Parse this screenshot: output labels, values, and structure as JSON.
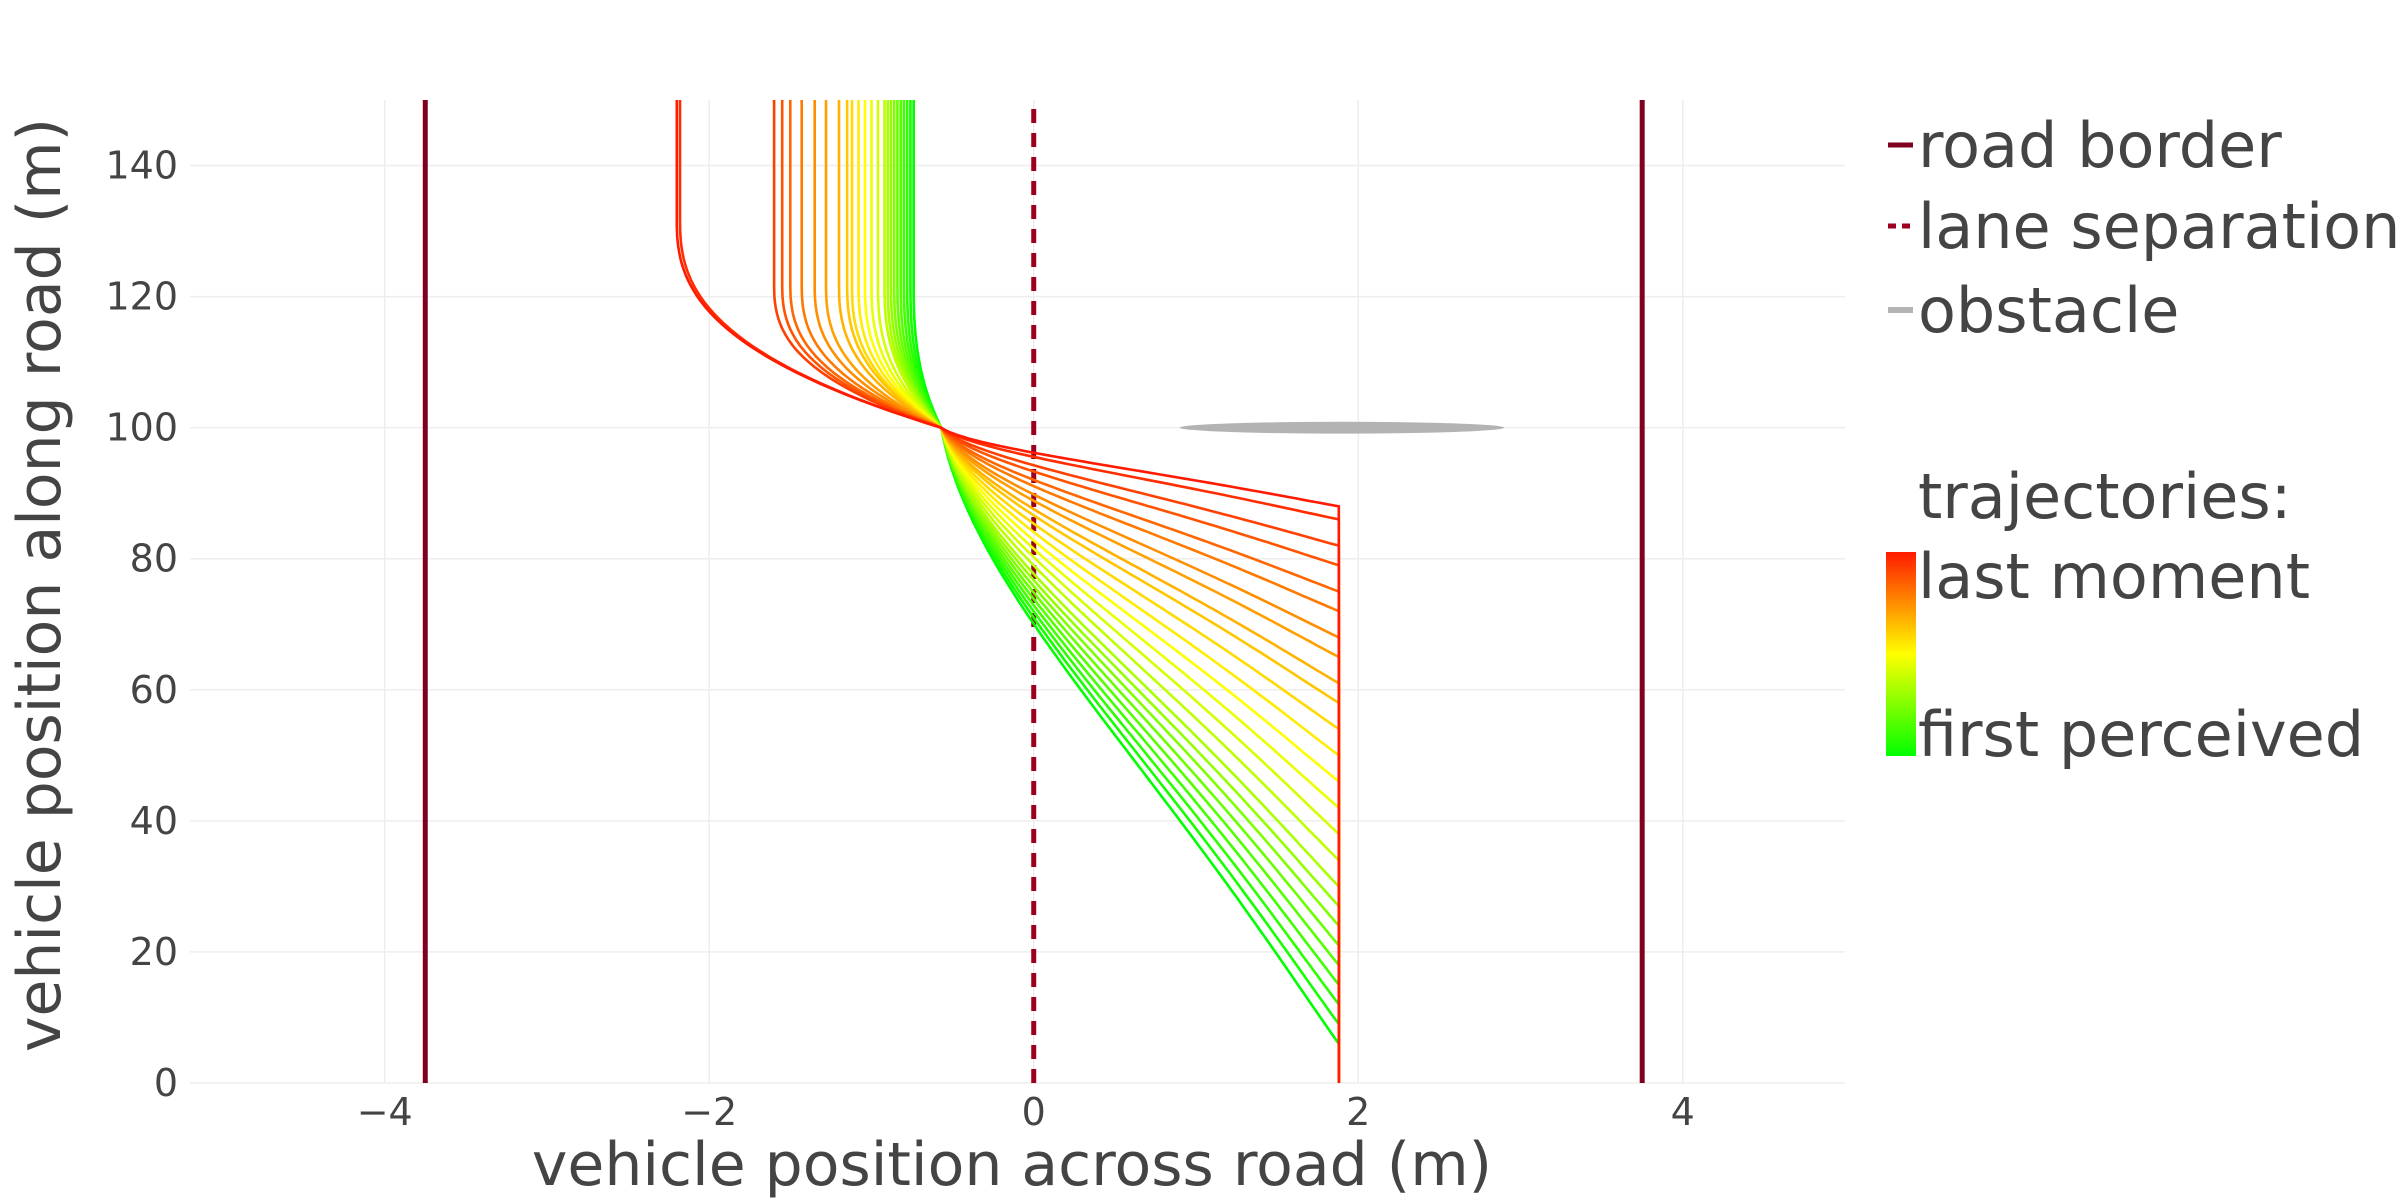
{
  "chart_data": {
    "type": "line",
    "title": "",
    "xlabel": "vehicle position across road (m)",
    "ylabel": "vehicle position along road (m)",
    "xlim": [
      -5.2,
      5.0
    ],
    "ylim": [
      0,
      150
    ],
    "xticks": [
      -4,
      -2,
      0,
      2,
      4
    ],
    "xtick_labels": [
      "−4",
      "−2",
      "0",
      "2",
      "4"
    ],
    "yticks": [
      0,
      20,
      40,
      60,
      80,
      100,
      120,
      140
    ],
    "ytick_labels": [
      "0",
      "20",
      "40",
      "60",
      "80",
      "100",
      "120",
      "140"
    ],
    "grid": true,
    "legend_position": "right",
    "colors": {
      "road_border": "#800020",
      "lane_separation": "#9b0020",
      "obstacle": "#b3b3b3",
      "last_moment": "#ff1a00",
      "middle": "#ffff00",
      "first_perceived": "#00ff00",
      "grid": "#eeeeee",
      "text": "#444444"
    },
    "road_borders": [
      {
        "x": -3.75,
        "y": [
          0,
          150
        ]
      },
      {
        "x": 3.75,
        "y": [
          0,
          150
        ]
      }
    ],
    "lane_separation": {
      "x": 0,
      "y": [
        0,
        150
      ]
    },
    "obstacle": {
      "x_center": 1.9,
      "x_width": 2.0,
      "y_center": 100,
      "y_height": 1.8
    },
    "trajectory_model": {
      "start_x": 1.88,
      "pivot": {
        "x": -0.57,
        "y": 100
      },
      "count": 25,
      "straight_until_y": [
        88,
        86,
        82,
        79,
        75,
        72,
        68,
        65,
        61,
        58,
        54,
        50,
        46,
        42,
        38,
        34,
        30,
        27,
        24,
        21,
        18,
        15,
        12,
        9,
        6
      ],
      "final_x": [
        -2.2,
        -2.18,
        -1.6,
        -1.55,
        -1.5,
        -1.43,
        -1.35,
        -1.28,
        -1.2,
        -1.15,
        -1.12,
        -1.08,
        -1.04,
        -1.0,
        -0.96,
        -0.92,
        -0.9,
        -0.88,
        -0.86,
        -0.84,
        -0.82,
        -0.8,
        -0.78,
        -0.76,
        -0.74
      ]
    },
    "legend": {
      "items": [
        {
          "label": "road border",
          "style": "solid",
          "color": "#800020"
        },
        {
          "label": "lane separation",
          "style": "dashed",
          "color": "#9b0020"
        },
        {
          "label": "obstacle",
          "style": "solid",
          "color": "#b3b3b3"
        }
      ],
      "trajectories_title": "trajectories:",
      "gradient_top_label": "last moment",
      "gradient_bottom_label": "first perceived"
    }
  }
}
